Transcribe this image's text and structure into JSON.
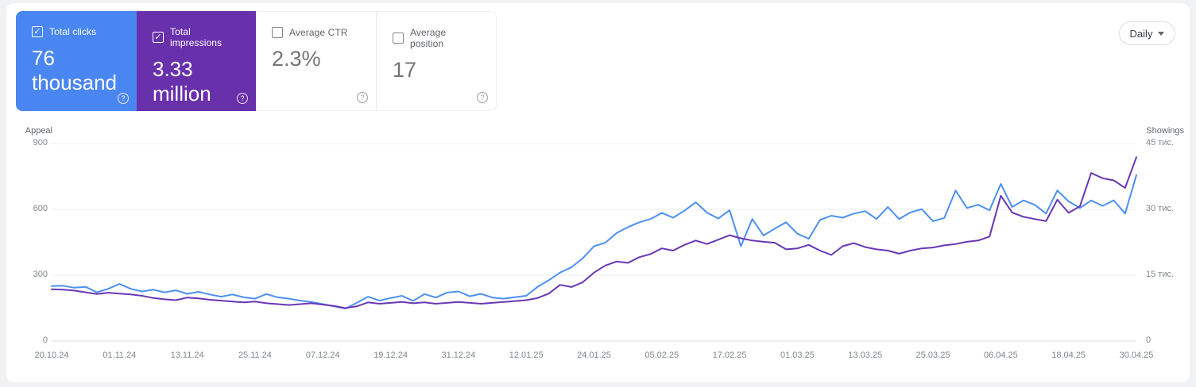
{
  "glyphs": {
    "help": "?"
  },
  "toolbar": {
    "granularity_label": "Daily"
  },
  "cards": [
    {
      "label": "Total clicks",
      "value_line1": "76",
      "value_line2": "thousand",
      "checked": true,
      "check_glyph": "✓",
      "bg": "#4a86f2"
    },
    {
      "label": "Total impressions",
      "value_line1": "3.33",
      "value_line2": "million",
      "checked": true,
      "check_glyph": "✓",
      "bg": "#6930ac"
    },
    {
      "label": "Average CTR",
      "value_line1": "2.3%",
      "value_line2": "",
      "checked": false,
      "check_glyph": "",
      "bg": "#ffffff"
    },
    {
      "label": "Average position",
      "value_line1": "17",
      "value_line2": "",
      "checked": false,
      "check_glyph": "",
      "bg": "#ffffff"
    }
  ],
  "chart_data": {
    "type": "line",
    "grid": true,
    "legend_position": "none",
    "sample_interval_days": 2,
    "x_axis": {
      "start_date": "20.10.24",
      "end_date": "30.04.25",
      "tick_labels": [
        "20.10.24",
        "01.11.24",
        "13.11.24",
        "25.11.24",
        "07.12.24",
        "19.12.24",
        "31.12.24",
        "12.01.25",
        "24.01.25",
        "05.02.25",
        "17.02.25",
        "01.03.25",
        "13.03.25",
        "25.03.25",
        "06.04.25",
        "18.04.25",
        "30.04.25"
      ]
    },
    "left_axis": {
      "title": "Appeal",
      "min": 0,
      "max": 900,
      "tick_values": [
        900,
        600,
        300,
        0
      ],
      "tick_labels": [
        "900",
        "600",
        "300",
        "0"
      ]
    },
    "right_axis": {
      "title": "Showings",
      "min": 0,
      "max": 45,
      "tick_values": [
        45,
        30,
        15,
        0
      ],
      "tick_labels": [
        "45 тис.",
        "30 тис.",
        "15 тис.",
        "0"
      ]
    },
    "series": [
      {
        "name": "Total clicks",
        "axis": "left",
        "color": "#4d90f0",
        "values": [
          250,
          252,
          243,
          247,
          222,
          238,
          260,
          238,
          226,
          234,
          222,
          231,
          215,
          224,
          212,
          202,
          212,
          199,
          193,
          214,
          199,
          193,
          184,
          178,
          168,
          158,
          148,
          174,
          202,
          184,
          196,
          206,
          183,
          214,
          198,
          221,
          226,
          204,
          215,
          198,
          193,
          200,
          206,
          247,
          277,
          312,
          336,
          377,
          432,
          448,
          492,
          519,
          541,
          556,
          584,
          562,
          594,
          632,
          585,
          558,
          596,
          432,
          556,
          481,
          512,
          541,
          489,
          466,
          552,
          571,
          562,
          581,
          592,
          556,
          611,
          556,
          586,
          601,
          546,
          561,
          686,
          606,
          621,
          596,
          716,
          611,
          641,
          621,
          581,
          686,
          636,
          606,
          641,
          616,
          641,
          581,
          756
        ]
      },
      {
        "name": "Total impressions",
        "axis": "right",
        "unit": "тис.",
        "color": "#6937b4",
        "values": [
          11.8,
          11.7,
          11.5,
          11.1,
          10.7,
          11.0,
          10.8,
          10.6,
          10.3,
          9.8,
          9.5,
          9.3,
          9.9,
          9.7,
          9.4,
          9.2,
          9.0,
          8.8,
          9.0,
          8.6,
          8.4,
          8.2,
          8.4,
          8.6,
          8.3,
          8.0,
          7.5,
          7.9,
          8.8,
          8.5,
          8.7,
          8.9,
          8.6,
          8.8,
          8.5,
          8.7,
          8.9,
          8.7,
          8.5,
          8.7,
          8.9,
          9.1,
          9.3,
          9.8,
          10.8,
          12.8,
          12.3,
          13.4,
          15.6,
          17.2,
          18.1,
          17.8,
          19.1,
          19.8,
          21.1,
          20.6,
          21.9,
          22.9,
          22.1,
          23.1,
          24.1,
          23.4,
          22.9,
          22.6,
          22.4,
          20.9,
          21.1,
          21.9,
          20.6,
          19.6,
          21.6,
          22.3,
          21.4,
          20.9,
          20.6,
          19.9,
          20.6,
          21.1,
          21.3,
          21.8,
          22.1,
          22.6,
          22.9,
          23.8,
          33.1,
          29.3,
          28.3,
          27.8,
          27.3,
          32.2,
          29.2,
          30.7,
          38.3,
          37.1,
          36.6,
          34.9,
          41.9
        ]
      }
    ]
  }
}
